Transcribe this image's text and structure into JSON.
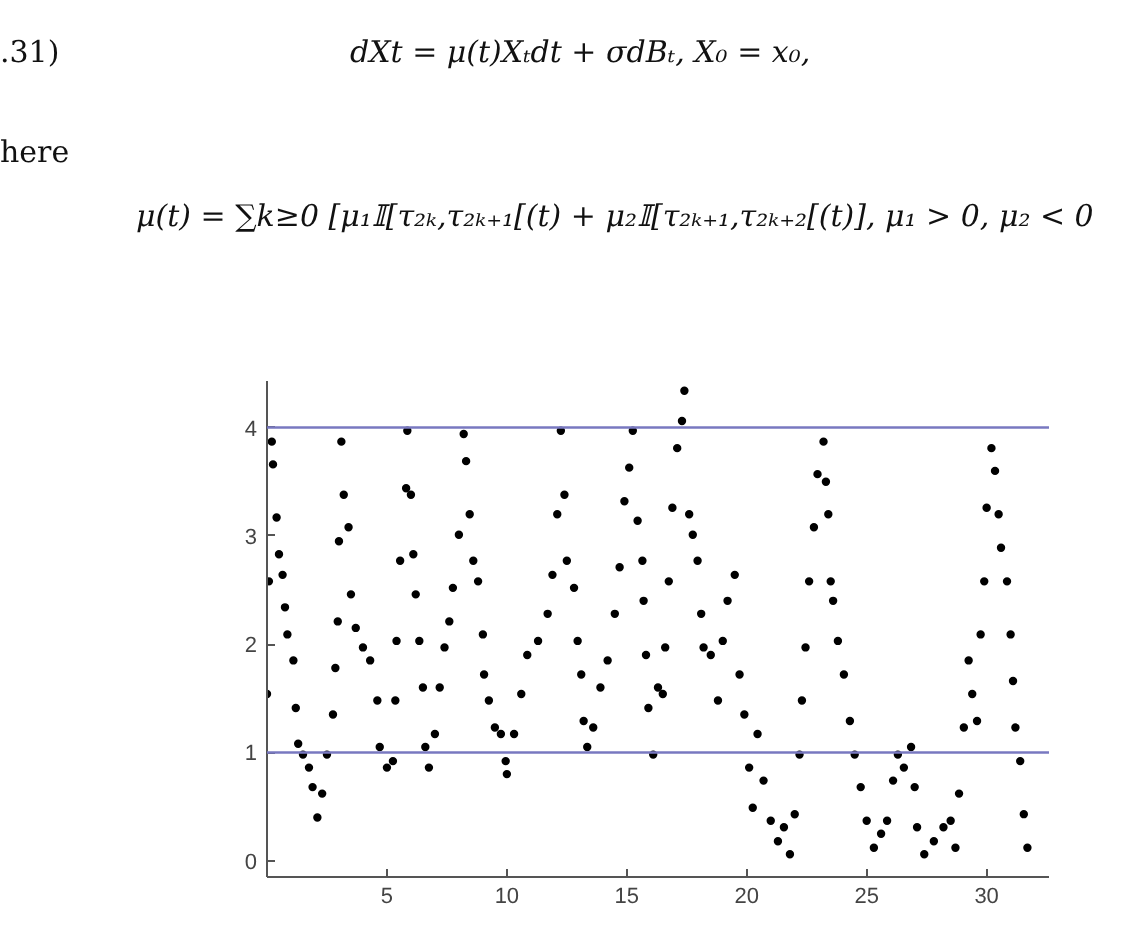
{
  "chart_data": {
    "type": "scatter",
    "marker": "circle",
    "grid": false,
    "annotations": [
      ".31)",
      "dXt = μ(t)Xₜdt + σdBₜ,    X₀ = x₀,",
      "here",
      "μ(t) = ∑k≥0 [μ₁𝕀[τ₂ₖ,τ₂ₖ₊₁[(t) + μ₂𝕀[τ₂ₖ₊₁,τ₂ₖ₊₂[(t)],    μ₁ > 0, μ₂ < 0"
    ],
    "xlim": [
      0,
      32.6
    ],
    "ylim": [
      -0.15,
      4.43
    ],
    "xticks": [
      5,
      10,
      15,
      20,
      25,
      30
    ],
    "yticks": [
      0,
      1,
      2,
      3,
      4
    ],
    "ref_lines": [
      {
        "axis": "y",
        "value": 1,
        "color": "#7878c0"
      },
      {
        "axis": "y",
        "value": 4,
        "color": "#7878c0"
      }
    ],
    "series": [
      {
        "color": "#000000",
        "x": [
          0,
          0.08,
          0.2,
          0.25,
          0.4,
          0.5,
          0.65,
          0.75,
          0.85,
          1.1,
          1.2,
          1.3,
          1.5,
          1.75,
          1.9,
          2.1,
          2.3,
          2.5,
          2.75,
          2.85,
          2.95,
          3.0,
          3.1,
          3.2,
          3.4,
          3.5,
          3.7,
          4.0,
          4.3,
          4.6,
          4.7,
          5.0,
          5.25,
          5.35,
          5.4,
          5.55,
          5.8,
          5.85,
          6.0,
          6.1,
          6.2,
          6.35,
          6.5,
          6.6,
          6.75,
          7.0,
          7.2,
          7.4,
          7.6,
          7.75,
          8.0,
          8.2,
          8.3,
          8.45,
          8.6,
          8.8,
          9.0,
          9.05,
          9.25,
          9.5,
          9.75,
          9.95,
          10.0,
          10.3,
          10.6,
          10.85,
          11.3,
          11.7,
          11.9,
          12.1,
          12.25,
          12.4,
          12.5,
          12.8,
          12.95,
          13.1,
          13.2,
          13.35,
          13.6,
          13.9,
          14.2,
          14.5,
          14.7,
          14.9,
          15.1,
          15.25,
          15.45,
          15.65,
          15.7,
          15.8,
          15.9,
          16.1,
          16.3,
          16.5,
          16.6,
          16.75,
          16.9,
          17.1,
          17.3,
          17.4,
          17.6,
          17.75,
          17.95,
          18.1,
          18.2,
          18.5,
          18.8,
          19.0,
          19.2,
          19.5,
          19.7,
          19.9,
          20.1,
          20.25,
          20.45,
          20.7,
          21.0,
          21.3,
          21.55,
          21.8,
          22.0,
          22.2,
          22.3,
          22.45,
          22.6,
          22.8,
          22.95,
          23.2,
          23.3,
          23.4,
          23.5,
          23.6,
          23.8,
          24.05,
          24.3,
          24.5,
          24.75,
          25.0,
          25.3,
          25.6,
          25.85,
          26.1,
          26.3,
          26.55,
          26.85,
          27.0,
          27.1,
          27.4,
          27.8,
          28.2,
          28.5,
          28.7,
          28.85,
          29.05,
          29.25,
          29.4,
          29.6,
          29.75,
          29.9,
          30.0,
          30.2,
          30.35,
          30.5,
          30.6,
          30.85,
          31.0,
          31.1,
          31.2,
          31.4,
          31.55,
          31.7
        ],
        "values": [
          1.54,
          2.58,
          3.87,
          3.66,
          3.17,
          2.83,
          2.64,
          2.34,
          2.09,
          1.85,
          1.41,
          1.08,
          0.98,
          0.86,
          0.68,
          0.4,
          0.62,
          0.98,
          1.35,
          1.78,
          2.21,
          2.95,
          3.87,
          3.38,
          3.08,
          2.46,
          2.15,
          1.97,
          1.85,
          1.48,
          1.05,
          0.86,
          0.92,
          1.48,
          2.03,
          2.77,
          3.44,
          3.97,
          3.38,
          2.83,
          2.46,
          2.03,
          1.6,
          1.05,
          0.86,
          1.17,
          1.6,
          1.97,
          2.21,
          2.52,
          3.01,
          3.94,
          3.69,
          3.2,
          2.77,
          2.58,
          2.09,
          1.72,
          1.48,
          1.23,
          1.17,
          0.92,
          0.8,
          1.17,
          1.54,
          1.9,
          2.03,
          2.28,
          2.64,
          3.2,
          3.97,
          3.38,
          2.77,
          2.52,
          2.03,
          1.72,
          1.29,
          1.05,
          1.23,
          1.6,
          1.85,
          2.28,
          2.71,
          3.32,
          3.63,
          3.97,
          3.14,
          2.77,
          2.4,
          1.9,
          1.41,
          0.98,
          1.6,
          1.54,
          1.97,
          2.58,
          3.26,
          3.81,
          4.06,
          4.34,
          3.2,
          3.01,
          2.77,
          2.28,
          1.97,
          1.9,
          1.48,
          2.03,
          2.4,
          2.64,
          1.72,
          1.35,
          0.86,
          0.49,
          1.17,
          0.74,
          0.37,
          0.18,
          0.31,
          0.06,
          0.43,
          0.98,
          1.48,
          1.97,
          2.58,
          3.08,
          3.57,
          3.87,
          3.5,
          3.2,
          2.58,
          2.4,
          2.03,
          1.72,
          1.29,
          0.98,
          0.68,
          0.37,
          0.12,
          0.25,
          0.37,
          0.74,
          0.98,
          0.86,
          1.05,
          0.68,
          0.31,
          0.06,
          0.18,
          0.31,
          0.37,
          0.12,
          0.62,
          1.23,
          1.85,
          1.54,
          1.29,
          2.09,
          2.58,
          3.26,
          3.81,
          3.6,
          3.2,
          2.89,
          2.58,
          2.09,
          1.66,
          1.23,
          0.92,
          0.43,
          0.12
        ]
      }
    ]
  }
}
